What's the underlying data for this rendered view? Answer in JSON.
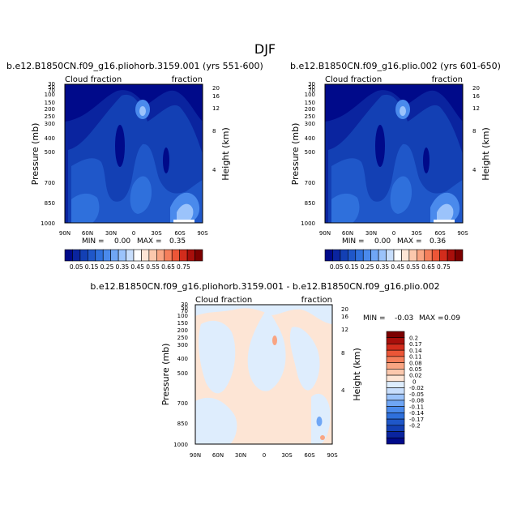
{
  "figure": {
    "title": "DJF"
  },
  "colors": {
    "top_scale": [
      "#000a8a",
      "#0a249f",
      "#1340b4",
      "#1f57c9",
      "#2f70dc",
      "#4a8aec",
      "#6fa6f5",
      "#9bc3fb",
      "#c8defc",
      "#ffffff",
      "#fde5d5",
      "#fbc8ad",
      "#f9a583",
      "#f57f5b",
      "#ec5637",
      "#d22c1c",
      "#a80f0b",
      "#7c0000"
    ],
    "diff_scale": [
      "#000a8a",
      "#0a249f",
      "#1340b4",
      "#1f57c9",
      "#2f70dc",
      "#4a8aec",
      "#6fa6f5",
      "#9bc3fb",
      "#c8defc",
      "#deedfd",
      "#fde5d5",
      "#fbc8ad",
      "#f9a583",
      "#f57f5b",
      "#ec5637",
      "#d22c1c",
      "#a80f0b",
      "#7c0000"
    ]
  },
  "chart_data": [
    {
      "type": "heatmap",
      "title": "b.e12.B1850CN.f09_g16.pliohorb.3159.001 (yrs 551-600)",
      "left_label": "Cloud fraction",
      "right_label": "fraction",
      "ylabel": "Pressure (mb)",
      "ylabel_right": "Height (km)",
      "x_ticks": [
        "90N",
        "60N",
        "30N",
        "0",
        "30S",
        "60S",
        "90S"
      ],
      "y_ticks": [
        "30",
        "50",
        "70",
        "100",
        "150",
        "200",
        "250",
        "300",
        "400",
        "500",
        "700",
        "850",
        "1000"
      ],
      "height_ticks": [
        "20",
        "16",
        "12",
        "8",
        "4"
      ],
      "min_label": "MIN =",
      "min_value": "0.00",
      "max_label": "MAX =",
      "max_value": "0.35",
      "colorbar_labels": [
        "0.05",
        "0.15",
        "0.25",
        "0.35",
        "0.45",
        "0.55",
        "0.65",
        "0.75"
      ]
    },
    {
      "type": "heatmap",
      "title": "b.e12.B1850CN.f09_g16.plio.002 (yrs 601-650)",
      "left_label": "Cloud fraction",
      "right_label": "fraction",
      "ylabel": "Pressure (mb)",
      "ylabel_right": "Height (km)",
      "x_ticks": [
        "90N",
        "60N",
        "30N",
        "0",
        "30S",
        "60S",
        "90S"
      ],
      "y_ticks": [
        "30",
        "50",
        "70",
        "100",
        "150",
        "200",
        "250",
        "300",
        "400",
        "500",
        "700",
        "850",
        "1000"
      ],
      "height_ticks": [
        "20",
        "16",
        "12",
        "8",
        "4"
      ],
      "min_label": "MIN =",
      "min_value": "0.00",
      "max_label": "MAX =",
      "max_value": "0.36",
      "colorbar_labels": [
        "0.05",
        "0.15",
        "0.25",
        "0.35",
        "0.45",
        "0.55",
        "0.65",
        "0.75"
      ]
    },
    {
      "type": "heatmap",
      "title": "b.e12.B1850CN.f09_g16.pliohorb.3159.001 - b.e12.B1850CN.f09_g16.plio.002",
      "left_label": "Cloud fraction",
      "right_label": "fraction",
      "ylabel": "Pressure (mb)",
      "ylabel_right": "Height (km)",
      "x_ticks": [
        "90N",
        "60N",
        "30N",
        "0",
        "30S",
        "60S",
        "90S"
      ],
      "y_ticks": [
        "30",
        "50",
        "70",
        "100",
        "150",
        "200",
        "250",
        "300",
        "400",
        "500",
        "700",
        "850",
        "1000"
      ],
      "height_ticks": [
        "20",
        "16",
        "12",
        "8",
        "4"
      ],
      "min_label": "MIN =",
      "min_value": "-0.03",
      "max_label": "MAX =",
      "max_value": "0.09",
      "colorbar_labels": [
        "0.2",
        "0.17",
        "0.14",
        "0.11",
        "0.08",
        "0.05",
        "0.02",
        "0",
        "-0.02",
        "-0.05",
        "-0.08",
        "-0.11",
        "-0.14",
        "-0.17",
        "-0.2"
      ]
    }
  ]
}
